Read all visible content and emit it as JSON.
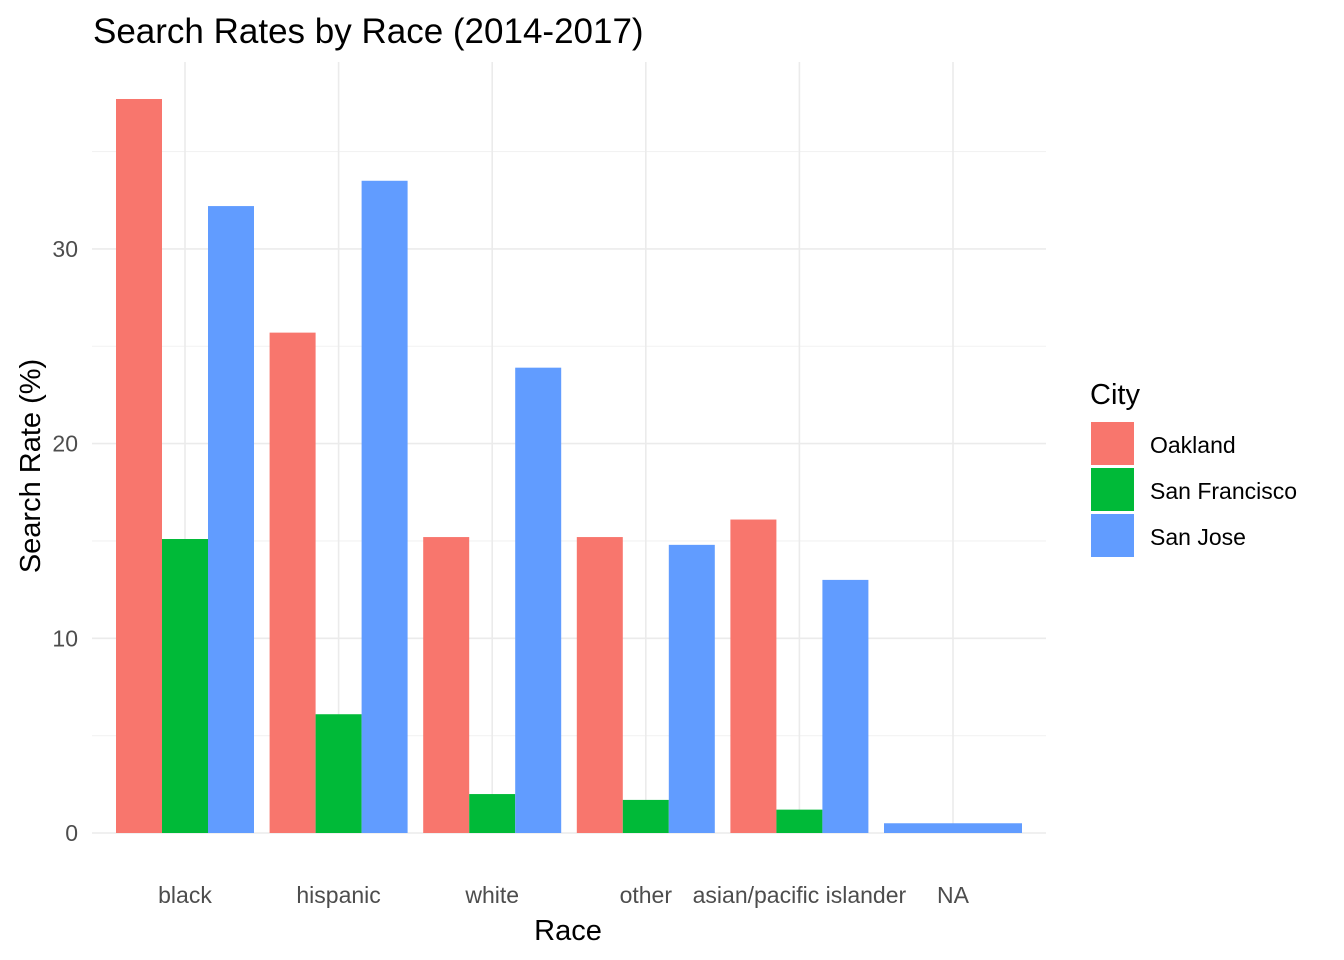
{
  "chart_data": {
    "type": "bar",
    "title": "Search Rates by Race (2014-2017)",
    "xlabel": "Race",
    "ylabel": "Search Rate (%)",
    "categories": [
      "black",
      "hispanic",
      "white",
      "other",
      "asian/pacific islander",
      "NA"
    ],
    "series": [
      {
        "name": "Oakland",
        "color": "#F8766D",
        "values": [
          37.7,
          25.7,
          15.2,
          15.2,
          16.1,
          null
        ]
      },
      {
        "name": "San Francisco",
        "color": "#00BA38",
        "values": [
          15.1,
          6.1,
          2.0,
          1.7,
          1.2,
          null
        ]
      },
      {
        "name": "San Jose",
        "color": "#619CFF",
        "values": [
          32.2,
          33.5,
          23.9,
          14.8,
          13.0,
          0.5
        ]
      }
    ],
    "ylim": [
      0,
      39.6
    ],
    "yticks": [
      0,
      10,
      20,
      30
    ],
    "ytick_labels": [
      "0",
      "10",
      "20",
      "30"
    ],
    "grid": true,
    "legend": {
      "title": "City",
      "position": "right"
    }
  }
}
